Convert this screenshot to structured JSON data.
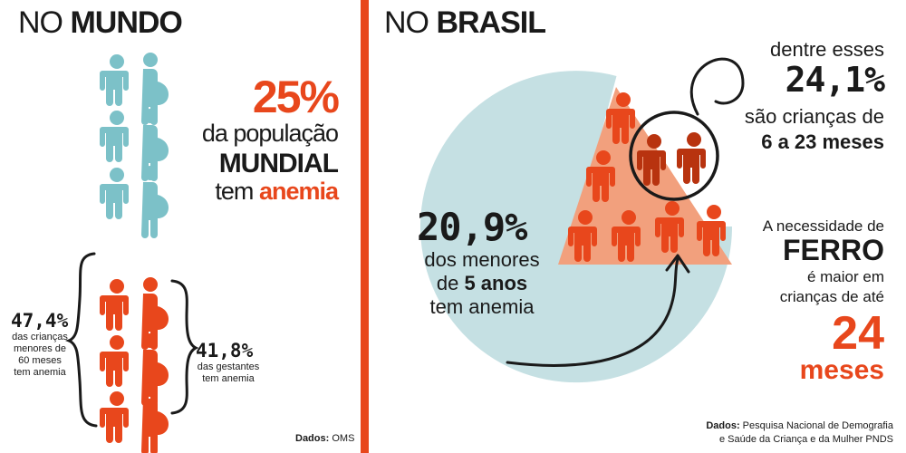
{
  "colors": {
    "accent": "#e8471c",
    "teal": "#7cc1c8",
    "pie": "#c5e0e3",
    "slice": "#f2a07d",
    "dark_orange": "#b8330f",
    "text": "#1a1a1a"
  },
  "world": {
    "title_light": "NO",
    "title_bold": "MUNDO",
    "big_pct": "25%",
    "line1": "da população",
    "line2": "MUNDIAL",
    "line3_a": "tem",
    "line3_b": "anemia",
    "children_pct": "47,4%",
    "children_l1": "das crianças",
    "children_l2": "menores de",
    "children_l3": "60 meses",
    "children_l4": "tem anemia",
    "pregnant_pct": "41,8%",
    "pregnant_l1": "das gestantes",
    "pregnant_l2": "tem anemia",
    "source_label": "Dados:",
    "source": "OMS"
  },
  "brazil": {
    "title_light": "NO",
    "title_bold": "BRASIL",
    "pie_pct": "20,9%",
    "pie_l1": "dos menores",
    "pie_l2_a": "de",
    "pie_l2_b": "5 anos",
    "pie_l3": "tem anemia",
    "among_l1": "dentre esses",
    "among_pct": "24,1%",
    "among_l2": "são crianças de",
    "among_l3": "6 a 23 meses",
    "iron_l1": "A necessidade de",
    "iron_l2": "FERRO",
    "iron_l3": "é maior em",
    "iron_l4": "crianças de até",
    "iron_num": "24",
    "iron_unit": "meses",
    "source_label": "Dados:",
    "source_l1": "Pesquisa Nacional de Demografia",
    "source_l2": "e Saúde da Criança e da Mulher PNDS"
  },
  "chart_values": {
    "world_population_anemia_pct": 25,
    "children_under_60_months_pct": 47.4,
    "pregnant_women_pct": 41.8,
    "brazil_under_5_pct": 20.9,
    "brazil_6_to_23_months_pct": 24.1
  }
}
